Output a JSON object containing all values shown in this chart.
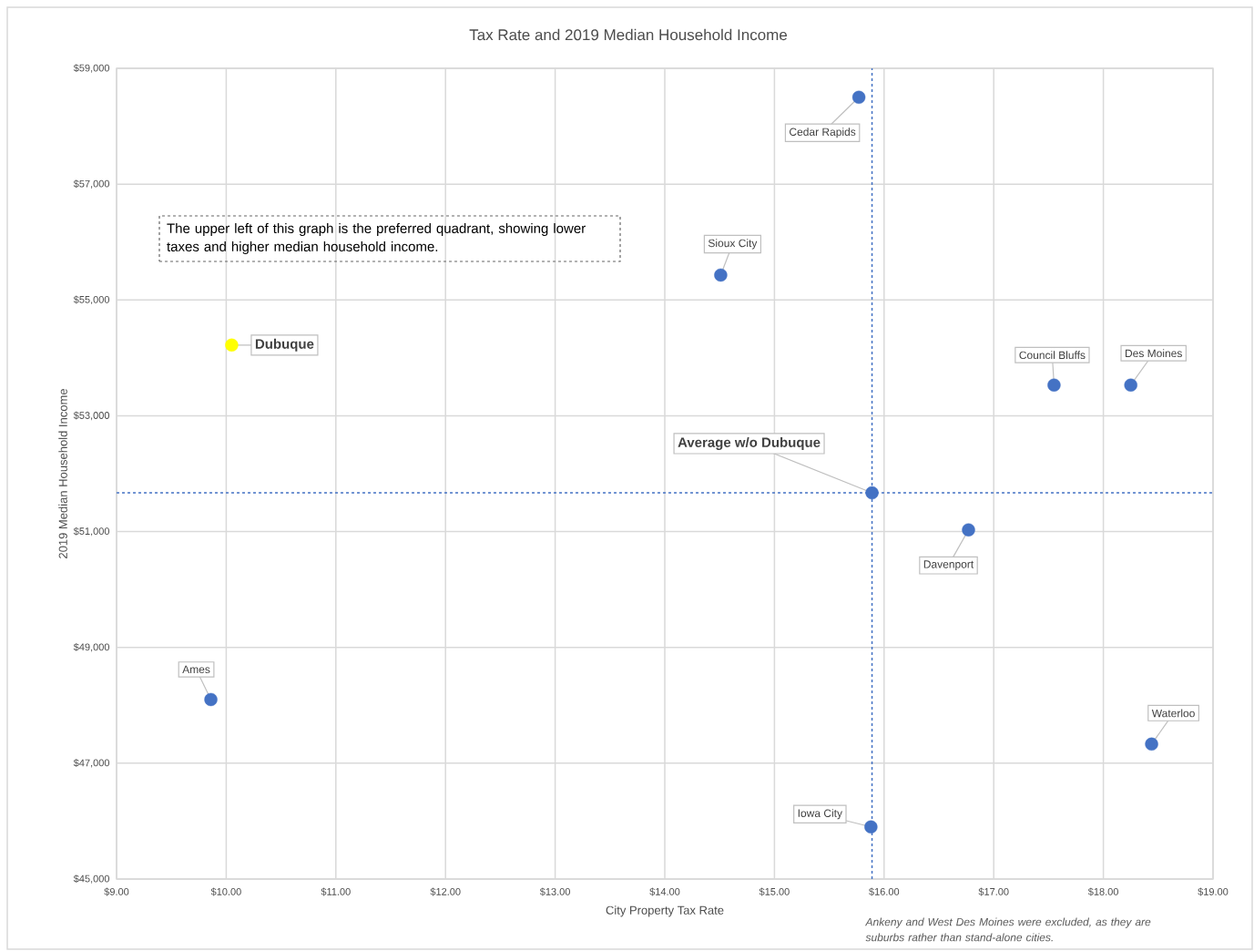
{
  "chart_data": {
    "type": "scatter",
    "title": "Tax Rate and 2019 Median Household Income",
    "xlabel": "City Property Tax Rate",
    "ylabel": "2019 Median Household Income",
    "series": [
      {
        "x": [
          15.77,
          14.51,
          10.05,
          17.55,
          18.25,
          15.89,
          16.77,
          9.86,
          18.44,
          15.88
        ],
        "values": [
          58500,
          55430,
          54220,
          53530,
          53530,
          51670,
          51030,
          48100,
          47330,
          45900
        ],
        "colors": [
          "#4472c4",
          "#4472c4",
          "#ffff00",
          "#4472c4",
          "#4472c4",
          "#4472c4",
          "#4472c4",
          "#4472c4",
          "#4472c4",
          "#4472c4"
        ]
      }
    ],
    "xlim": [
      9,
      19
    ],
    "ylim": [
      45000,
      59000
    ],
    "xticks": [
      {
        "value": 9,
        "label": "$9.00"
      },
      {
        "value": 10,
        "label": "$10.00"
      },
      {
        "value": 11,
        "label": "$11.00"
      },
      {
        "value": 12,
        "label": "$12.00"
      },
      {
        "value": 13,
        "label": "$13.00"
      },
      {
        "value": 14,
        "label": "$14.00"
      },
      {
        "value": 15,
        "label": "$15.00"
      },
      {
        "value": 16,
        "label": "$16.00"
      },
      {
        "value": 17,
        "label": "$17.00"
      },
      {
        "value": 18,
        "label": "$18.00"
      },
      {
        "value": 19,
        "label": "$19.00"
      }
    ],
    "yticks": [
      {
        "value": 45000,
        "label": "$45,000"
      },
      {
        "value": 47000,
        "label": "$47,000"
      },
      {
        "value": 49000,
        "label": "$49,000"
      },
      {
        "value": 51000,
        "label": "$51,000"
      },
      {
        "value": 53000,
        "label": "$53,000"
      },
      {
        "value": 55000,
        "label": "$55,000"
      },
      {
        "value": 57000,
        "label": "$57,000"
      },
      {
        "value": 59000,
        "label": "$59,000"
      }
    ],
    "ref_lines": [
      {
        "axis": "x",
        "value": 15.89,
        "color": "#4472c4",
        "line_style": "dashed"
      },
      {
        "axis": "y",
        "value": 51670,
        "color": "#4472c4",
        "line_style": "dashed"
      }
    ],
    "annotations": [
      {
        "text": "Cedar Rapids",
        "x": 15.77,
        "y": 58500
      },
      {
        "text": "Sioux City",
        "x": 14.51,
        "y": 55430
      },
      {
        "text": "Dubuque",
        "x": 10.05,
        "y": 54220
      },
      {
        "text": "Council Bluffs",
        "x": 17.55,
        "y": 53530
      },
      {
        "text": "Des Moines",
        "x": 18.25,
        "y": 53530
      },
      {
        "text": "Average w/o Dubuque",
        "x": 15.89,
        "y": 51670
      },
      {
        "text": "Davenport",
        "x": 16.77,
        "y": 51030
      },
      {
        "text": "Ames",
        "x": 9.86,
        "y": 48100
      },
      {
        "text": "Waterloo",
        "x": 18.44,
        "y": 47330
      },
      {
        "text": "Iowa City",
        "x": 15.88,
        "y": 45900
      },
      "The upper left of this graph is the preferred quadrant, showing lower taxes and higher median household income.",
      "Ankeny and West Des Moines were excluded, as they are suburbs rather than stand-alone cities."
    ],
    "grid": true,
    "marker": "circle"
  }
}
